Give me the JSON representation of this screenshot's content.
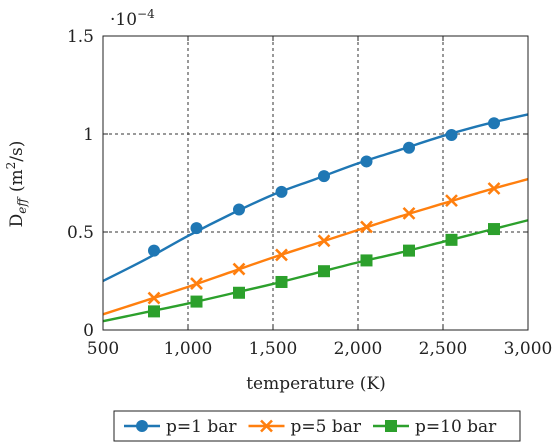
{
  "chart_data": {
    "type": "line",
    "title": "",
    "xlabel": "temperature (K)",
    "ylabel_main": "D",
    "ylabel_sub": "eff",
    "ylabel_unit_pre": "(m",
    "ylabel_unit_sup": "2",
    "ylabel_unit_post": "/s)",
    "y_multiplier_base": "·10",
    "y_multiplier_exp": "−4",
    "xlim": [
      500,
      3000
    ],
    "ylim": [
      0,
      1.5
    ],
    "x_ticks": [
      500,
      1000,
      1500,
      2000,
      2500,
      3000
    ],
    "x_tick_labels": [
      "500",
      "1,000",
      "1,500",
      "2,000",
      "2,500",
      "3,000"
    ],
    "y_ticks": [
      0,
      0.5,
      1,
      1.5
    ],
    "y_tick_labels": [
      "0",
      "0.5",
      "1",
      "1.5"
    ],
    "grid": true,
    "legend_position": "bottom-center",
    "series": [
      {
        "name": "p=1 bar",
        "color": "#1f77b4",
        "marker": "circle",
        "curve_x": [
          500,
          750,
          1000,
          1250,
          1500,
          1750,
          2000,
          2250,
          2500,
          2750,
          3000
        ],
        "curve_y": [
          0.25,
          0.36,
          0.48,
          0.59,
          0.69,
          0.77,
          0.85,
          0.92,
          0.99,
          1.05,
          1.1
        ],
        "marker_x": [
          800,
          1050,
          1300,
          1550,
          1800,
          2050,
          2300,
          2550,
          2800
        ],
        "marker_y": [
          0.405,
          0.52,
          0.615,
          0.705,
          0.785,
          0.86,
          0.93,
          0.995,
          1.055
        ]
      },
      {
        "name": "p=5 bar",
        "color": "#ff7f0e",
        "marker": "x",
        "curve_x": [
          500,
          750,
          1000,
          1250,
          1500,
          1750,
          2000,
          2250,
          2500,
          2750,
          3000
        ],
        "curve_y": [
          0.08,
          0.15,
          0.22,
          0.295,
          0.37,
          0.44,
          0.51,
          0.58,
          0.645,
          0.71,
          0.77
        ],
        "marker_x": [
          800,
          1050,
          1300,
          1550,
          1800,
          2050,
          2300,
          2550,
          2800
        ],
        "marker_y": [
          0.163,
          0.237,
          0.311,
          0.383,
          0.455,
          0.526,
          0.595,
          0.66,
          0.722
        ]
      },
      {
        "name": "p=10 bar",
        "color": "#2ca02c",
        "marker": "square",
        "curve_x": [
          500,
          750,
          1000,
          1250,
          1500,
          1750,
          2000,
          2250,
          2500,
          2750,
          3000
        ],
        "curve_y": [
          0.045,
          0.09,
          0.135,
          0.185,
          0.235,
          0.29,
          0.345,
          0.395,
          0.45,
          0.505,
          0.56
        ],
        "marker_x": [
          800,
          1050,
          1300,
          1550,
          1800,
          2050,
          2300,
          2550,
          2800
        ],
        "marker_y": [
          0.095,
          0.145,
          0.19,
          0.245,
          0.3,
          0.355,
          0.405,
          0.46,
          0.515
        ]
      }
    ]
  }
}
